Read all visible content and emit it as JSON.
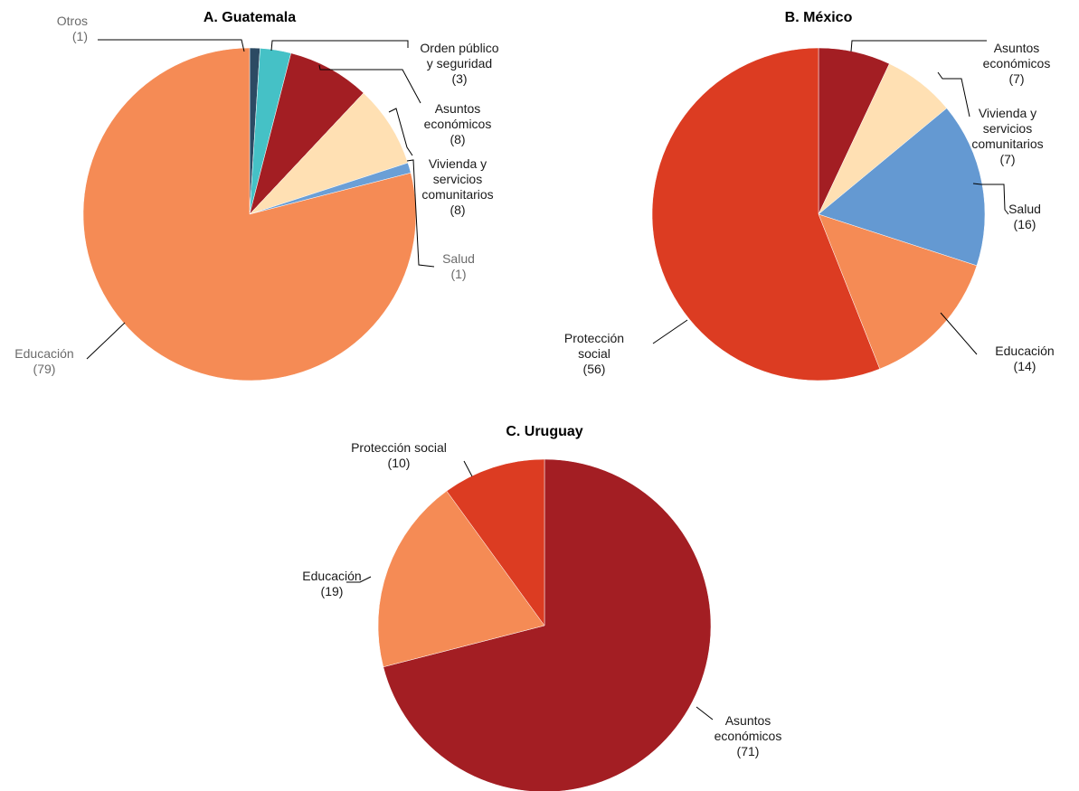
{
  "chart_data": [
    {
      "type": "pie",
      "title": "A. Guatemala",
      "slices": [
        {
          "label": [
            "Otros"
          ],
          "value": 1,
          "value_text": "(1)",
          "color": "#2c4a63",
          "muted": true
        },
        {
          "label": [
            "Orden público",
            "y seguridad"
          ],
          "value": 3,
          "value_text": "(3)",
          "color": "#45c1c6"
        },
        {
          "label": [
            "Asuntos",
            "económicos"
          ],
          "value": 8,
          "value_text": "(8)",
          "color": "#a31e23"
        },
        {
          "label": [
            "Vivienda y",
            "servicios",
            "comunitarios"
          ],
          "value": 8,
          "value_text": "(8)",
          "color": "#ffe0b3"
        },
        {
          "label": [
            "Salud"
          ],
          "value": 1,
          "value_text": "(1)",
          "color": "#6b9fd6",
          "muted": true
        },
        {
          "label": [
            "Educación"
          ],
          "value": 79,
          "value_text": "(79)",
          "color": "#f58b55",
          "muted": true
        }
      ]
    },
    {
      "type": "pie",
      "title": "B. México",
      "slices": [
        {
          "label": [
            "Asuntos",
            "económicos"
          ],
          "value": 7,
          "value_text": "(7)",
          "color": "#a31e23"
        },
        {
          "label": [
            "Vivienda y",
            "servicios",
            "comunitarios"
          ],
          "value": 7,
          "value_text": "(7)",
          "color": "#ffe0b3"
        },
        {
          "label": [
            "Salud"
          ],
          "value": 16,
          "value_text": "(16)",
          "color": "#6499d2"
        },
        {
          "label": [
            "Educación"
          ],
          "value": 14,
          "value_text": "(14)",
          "color": "#f58b55"
        },
        {
          "label": [
            "Protección",
            "social"
          ],
          "value": 56,
          "value_text": "(56)",
          "color": "#dc3c22"
        }
      ]
    },
    {
      "type": "pie",
      "title": "C. Uruguay",
      "slices": [
        {
          "label": [
            "Asuntos",
            "económicos"
          ],
          "value": 71,
          "value_text": "(71)",
          "color": "#a31e23"
        },
        {
          "label": [
            "Educación"
          ],
          "value": 19,
          "value_text": "(19)",
          "color": "#f58b55"
        },
        {
          "label": [
            "Protección social"
          ],
          "value": 10,
          "value_text": "(10)",
          "color": "#dc3c22"
        }
      ]
    }
  ]
}
